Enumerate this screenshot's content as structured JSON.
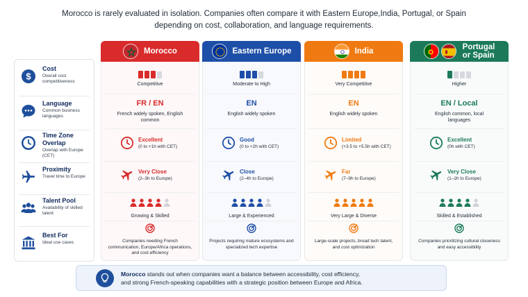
{
  "intro": {
    "line1": "Morocco is rarely evaluated in isolation. Companies often compare it with Eastern Europe,India, Portugal, or Spain",
    "line2": "depending on cost, collaboration, and language requirements."
  },
  "criteria": [
    {
      "title": "Cost",
      "sub": "Overall cost competitiveness",
      "icon": "dollar-icon"
    },
    {
      "title": "Language",
      "sub": "Common business languages",
      "icon": "chat-icon"
    },
    {
      "title": "Time Zone Overlap",
      "sub": "Overlap with Europe (CET)",
      "icon": "clock-icon"
    },
    {
      "title": "Proximity",
      "sub": "Travel time to Europe",
      "icon": "plane-icon"
    },
    {
      "title": "Talent Pool",
      "sub": "Availability of skilled talent",
      "icon": "people-icon"
    },
    {
      "title": "Best For",
      "sub": "Ideal use cases",
      "icon": "building-icon"
    }
  ],
  "regions": [
    {
      "name": "Morocco",
      "name_line2": "",
      "color": "#d92b2b",
      "flags": [
        "morocco-flag"
      ],
      "cost_level": 3,
      "cost_label": "Competitive",
      "lang_main": "FR / EN",
      "lang_sub": "French widely spoken, English common",
      "tz_main": "Excellent",
      "tz_sub": "(0 to +1h with CET)",
      "prox_main": "Very Close",
      "prox_sub": "(2–3h to Europe)",
      "talent_level": 4,
      "talent_label": "Growing & Skilled",
      "best": "Companies needing French communication, Europe/Africa operations, and cost efficiency"
    },
    {
      "name": "Eastern Europe",
      "name_line2": "",
      "color": "#1e4fa8",
      "flags": [
        "eu-flag"
      ],
      "cost_level": 3,
      "cost_label": "Moderate to High",
      "lang_main": "EN",
      "lang_sub": "English widely spoken",
      "tz_main": "Good",
      "tz_sub": "(0 to +2h with CET)",
      "prox_main": "Close",
      "prox_sub": "(2–4h to Europe)",
      "talent_level": 4,
      "talent_label": "Large & Experienced",
      "best": "Projects requiring mature ecosystems and specialized tech expertise"
    },
    {
      "name": "India",
      "name_line2": "",
      "color": "#f07a12",
      "flags": [
        "india-flag"
      ],
      "cost_level": 4,
      "cost_label": "Very Competitive",
      "lang_main": "EN",
      "lang_sub": "English widely spoken",
      "tz_main": "Limited",
      "tz_sub": "(+3.5 to +5.5h with CET)",
      "prox_main": "Far",
      "prox_sub": "(7–9h to Europe)",
      "talent_level": 5,
      "talent_label": "Very Large & Diverse",
      "best": "Large-scale projects, broad tech talent, and cost optimization"
    },
    {
      "name": "Portugal",
      "name_line2": "or Spain",
      "color": "#1c7a5a",
      "flags": [
        "portugal-flag",
        "spain-flag"
      ],
      "cost_level": 1,
      "cost_label": "Higher",
      "lang_main": "EN / Local",
      "lang_sub": "English common, local languages",
      "tz_main": "Excellent",
      "tz_sub": "(0h with CET)",
      "prox_main": "Very Close",
      "prox_sub": "(1–2h to Europe)",
      "talent_level": 4,
      "talent_label": "Skilled & Established",
      "best": "Companies prioritizing cultural closeness and easy accessibility"
    }
  ],
  "footer": {
    "lead": "Morocco",
    "text1": " stands out when companies want a balance between accessibility, cost efficiency,",
    "text2": "and strong French-speaking capabilities with a strategic position between Europe and Africa."
  }
}
